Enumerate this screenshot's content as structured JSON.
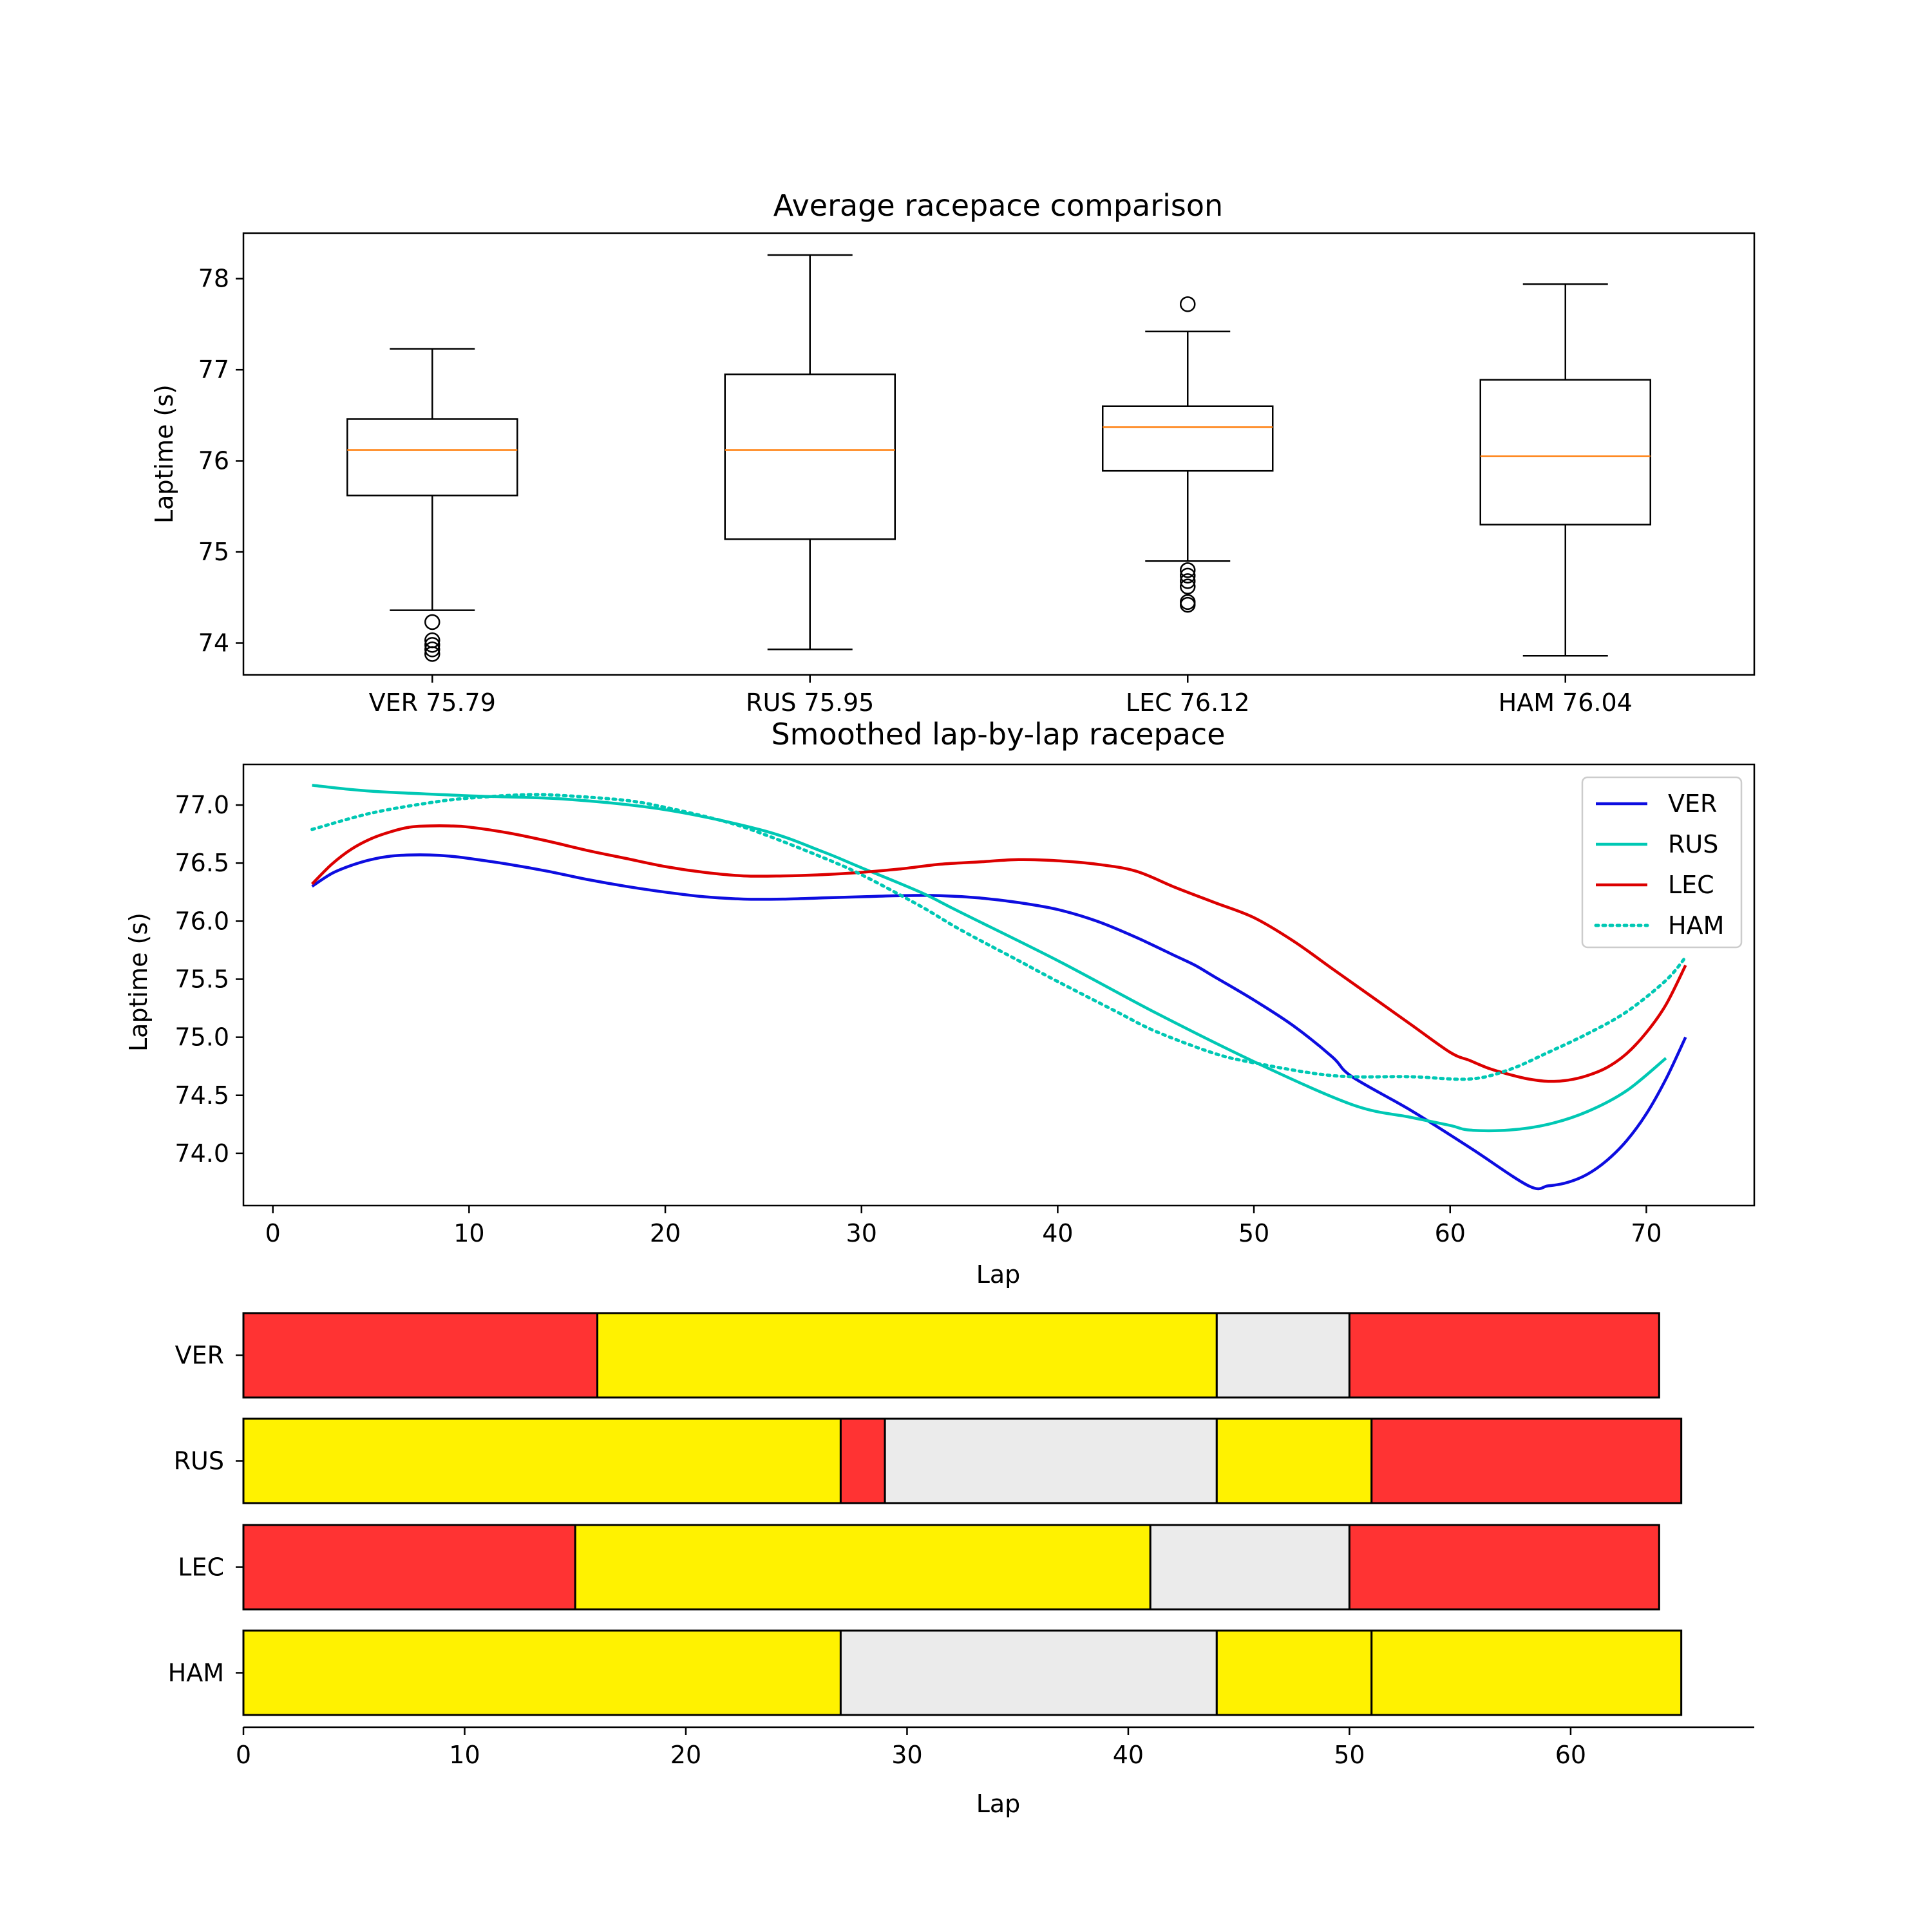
{
  "chart_data": [
    {
      "type": "box",
      "title": "Average racepace comparison",
      "xlabel": "",
      "ylabel": "Laptime (s)",
      "ylim": [
        73.65,
        78.5
      ],
      "yticks": [
        "74",
        "75",
        "76",
        "77",
        "78"
      ],
      "categories": [
        "VER 75.79",
        "RUS 75.95",
        "LEC 76.12",
        "HAM 76.04"
      ],
      "boxes": [
        {
          "name": "VER",
          "whisker_low": 74.36,
          "q1": 75.62,
          "median": 76.12,
          "q3": 76.46,
          "whisker_high": 77.23,
          "fliers": [
            74.23,
            74.03,
            73.98,
            73.93,
            73.88
          ]
        },
        {
          "name": "RUS",
          "whisker_low": 73.93,
          "q1": 75.14,
          "median": 76.12,
          "q3": 76.95,
          "whisker_high": 78.26,
          "fliers": []
        },
        {
          "name": "LEC",
          "whisker_low": 74.9,
          "q1": 75.89,
          "median": 76.37,
          "q3": 76.6,
          "whisker_high": 77.42,
          "fliers": [
            77.72,
            74.8,
            74.74,
            74.68,
            74.62,
            74.45,
            74.42
          ]
        },
        {
          "name": "HAM",
          "whisker_low": 73.86,
          "q1": 75.3,
          "median": 76.05,
          "q3": 76.89,
          "whisker_high": 77.94,
          "fliers": []
        }
      ],
      "grid": false
    },
    {
      "type": "line",
      "title": "Smoothed lap-by-lap racepace",
      "xlabel": "Lap",
      "ylabel": "Laptime (s)",
      "xlim": [
        -1.5,
        75.5
      ],
      "ylim": [
        73.55,
        77.35
      ],
      "xticks": [
        "0",
        "10",
        "20",
        "30",
        "40",
        "50",
        "60",
        "70"
      ],
      "yticks": [
        "74.0",
        "74.5",
        "75.0",
        "75.5",
        "76.0",
        "76.5",
        "77.0"
      ],
      "legend": "top-right",
      "grid": false,
      "series": [
        {
          "name": "VER",
          "color": "#0d0de0",
          "style": "solid",
          "x": [
            2,
            3,
            4,
            5,
            6,
            7,
            8,
            9,
            10,
            12,
            14,
            16,
            18,
            20,
            22,
            24,
            26,
            28,
            30,
            32,
            34,
            36,
            38,
            40,
            42,
            44,
            46,
            47,
            48,
            50,
            52,
            54,
            55,
            58,
            61,
            64,
            65,
            66,
            67,
            68,
            69,
            70,
            71,
            72
          ],
          "y": [
            76.3,
            76.41,
            76.48,
            76.53,
            76.56,
            76.57,
            76.57,
            76.56,
            76.54,
            76.49,
            76.43,
            76.36,
            76.3,
            76.25,
            76.21,
            76.19,
            76.19,
            76.2,
            76.21,
            76.22,
            76.22,
            76.2,
            76.16,
            76.1,
            76.0,
            75.86,
            75.7,
            75.62,
            75.52,
            75.32,
            75.1,
            74.83,
            74.66,
            74.37,
            74.05,
            73.72,
            73.72,
            73.75,
            73.82,
            73.94,
            74.11,
            74.34,
            74.64,
            75.0
          ]
        },
        {
          "name": "RUS",
          "color": "#00c8b4",
          "style": "solid",
          "x": [
            2,
            5,
            10,
            15,
            20,
            25,
            28,
            30,
            33,
            35,
            40,
            45,
            50,
            55,
            58,
            60,
            61,
            63,
            65,
            67,
            69,
            71
          ],
          "y": [
            77.17,
            77.12,
            77.08,
            77.05,
            76.96,
            76.78,
            76.6,
            76.46,
            76.25,
            76.08,
            75.66,
            75.21,
            74.79,
            74.42,
            74.31,
            74.24,
            74.2,
            74.2,
            74.25,
            74.36,
            74.54,
            74.82
          ]
        },
        {
          "name": "LEC",
          "color": "#dc0000",
          "style": "solid",
          "x": [
            2,
            3,
            4,
            5,
            6,
            7,
            8,
            9,
            10,
            12,
            14,
            16,
            18,
            20,
            22,
            24,
            26,
            28,
            30,
            32,
            34,
            36,
            38,
            40,
            42,
            44,
            46,
            48,
            50,
            52,
            54,
            56,
            58,
            60,
            61,
            62,
            63,
            64,
            65,
            66,
            67,
            68,
            69,
            70,
            71,
            72
          ],
          "y": [
            76.32,
            76.49,
            76.62,
            76.71,
            76.77,
            76.81,
            76.82,
            76.82,
            76.81,
            76.76,
            76.69,
            76.61,
            76.54,
            76.47,
            76.42,
            76.39,
            76.39,
            76.4,
            76.42,
            76.45,
            76.49,
            76.51,
            76.53,
            76.52,
            76.49,
            76.43,
            76.29,
            76.16,
            76.03,
            75.83,
            75.59,
            75.35,
            75.11,
            74.87,
            74.8,
            74.73,
            74.68,
            74.64,
            74.62,
            74.63,
            74.67,
            74.74,
            74.86,
            75.04,
            75.28,
            75.62
          ]
        },
        {
          "name": "HAM",
          "color": "#00c8b4",
          "style": "dotted",
          "x": [
            2,
            5,
            8,
            10,
            13,
            15,
            18,
            20,
            23,
            25,
            28,
            30,
            33,
            35,
            38,
            40,
            43,
            45,
            48,
            50,
            53,
            55,
            58,
            61,
            63,
            65,
            67,
            69,
            71,
            72
          ],
          "y": [
            76.79,
            76.93,
            77.02,
            77.06,
            77.09,
            77.08,
            77.04,
            76.98,
            76.86,
            76.75,
            76.55,
            76.4,
            76.13,
            75.93,
            75.66,
            75.48,
            75.22,
            75.05,
            74.86,
            74.78,
            74.69,
            74.66,
            74.66,
            74.64,
            74.72,
            74.87,
            75.03,
            75.22,
            75.49,
            75.69
          ]
        }
      ]
    },
    {
      "type": "bar",
      "orientation": "horizontal",
      "title": "",
      "xlabel": "Lap",
      "ylabel": "",
      "xlim": [
        0,
        68.3
      ],
      "xticks": [
        "0",
        "10",
        "20",
        "30",
        "40",
        "50",
        "60"
      ],
      "categories": [
        "VER",
        "RUS",
        "LEC",
        "HAM"
      ],
      "compound_colors": {
        "SOFT": "#ff3333",
        "MEDIUM": "#fff200",
        "HARD": "#ebebeb"
      },
      "series": [
        {
          "driver": "VER",
          "stints": [
            {
              "compound": "SOFT",
              "start": 0,
              "end": 16
            },
            {
              "compound": "MEDIUM",
              "start": 16,
              "end": 44
            },
            {
              "compound": "HARD",
              "start": 44,
              "end": 50
            },
            {
              "compound": "SOFT",
              "start": 50,
              "end": 64
            }
          ]
        },
        {
          "driver": "RUS",
          "stints": [
            {
              "compound": "MEDIUM",
              "start": 0,
              "end": 27
            },
            {
              "compound": "SOFT",
              "start": 27,
              "end": 29
            },
            {
              "compound": "HARD",
              "start": 29,
              "end": 44
            },
            {
              "compound": "MEDIUM",
              "start": 44,
              "end": 51
            },
            {
              "compound": "SOFT",
              "start": 51,
              "end": 65
            }
          ]
        },
        {
          "driver": "LEC",
          "stints": [
            {
              "compound": "SOFT",
              "start": 0,
              "end": 15
            },
            {
              "compound": "MEDIUM",
              "start": 15,
              "end": 41
            },
            {
              "compound": "HARD",
              "start": 41,
              "end": 50
            },
            {
              "compound": "SOFT",
              "start": 50,
              "end": 64
            }
          ]
        },
        {
          "driver": "HAM",
          "stints": [
            {
              "compound": "MEDIUM",
              "start": 0,
              "end": 27
            },
            {
              "compound": "HARD",
              "start": 27,
              "end": 44
            },
            {
              "compound": "MEDIUM",
              "start": 44,
              "end": 51
            },
            {
              "compound": "MEDIUM",
              "start": 51,
              "end": 65
            }
          ]
        }
      ]
    }
  ]
}
